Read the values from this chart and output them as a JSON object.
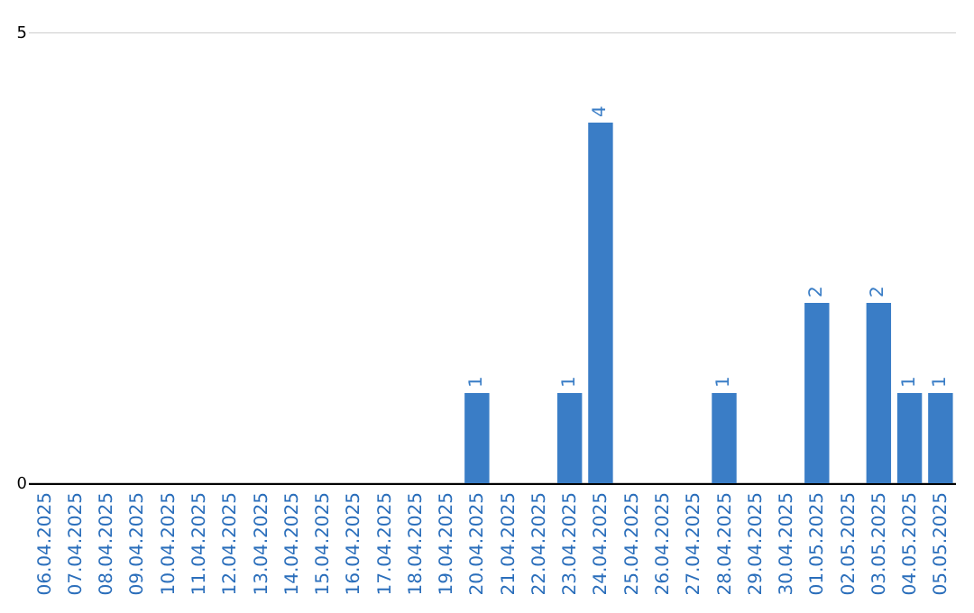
{
  "chart_data": {
    "type": "bar",
    "categories": [
      "06.04.2025",
      "07.04.2025",
      "08.04.2025",
      "09.04.2025",
      "10.04.2025",
      "11.04.2025",
      "12.04.2025",
      "13.04.2025",
      "14.04.2025",
      "15.04.2025",
      "16.04.2025",
      "17.04.2025",
      "18.04.2025",
      "19.04.2025",
      "20.04.2025",
      "21.04.2025",
      "22.04.2025",
      "23.04.2025",
      "24.04.2025",
      "25.04.2025",
      "26.04.2025",
      "27.04.2025",
      "28.04.2025",
      "29.04.2025",
      "30.04.2025",
      "01.05.2025",
      "02.05.2025",
      "03.05.2025",
      "04.05.2025",
      "05.05.2025"
    ],
    "values": [
      0,
      0,
      0,
      0,
      0,
      0,
      0,
      0,
      0,
      0,
      0,
      0,
      0,
      0,
      1,
      0,
      0,
      1,
      4,
      0,
      0,
      0,
      1,
      0,
      0,
      2,
      0,
      2,
      1,
      1
    ],
    "value_labels": [
      null,
      null,
      null,
      null,
      null,
      null,
      null,
      null,
      null,
      null,
      null,
      null,
      null,
      null,
      "1",
      null,
      null,
      "1",
      "4",
      null,
      null,
      null,
      "1",
      null,
      null,
      "2",
      null,
      "2",
      "1",
      "1"
    ],
    "color": "#3a7dc6",
    "ylim": [
      0,
      5
    ],
    "yticks": [
      0,
      5
    ],
    "grid": "y"
  }
}
